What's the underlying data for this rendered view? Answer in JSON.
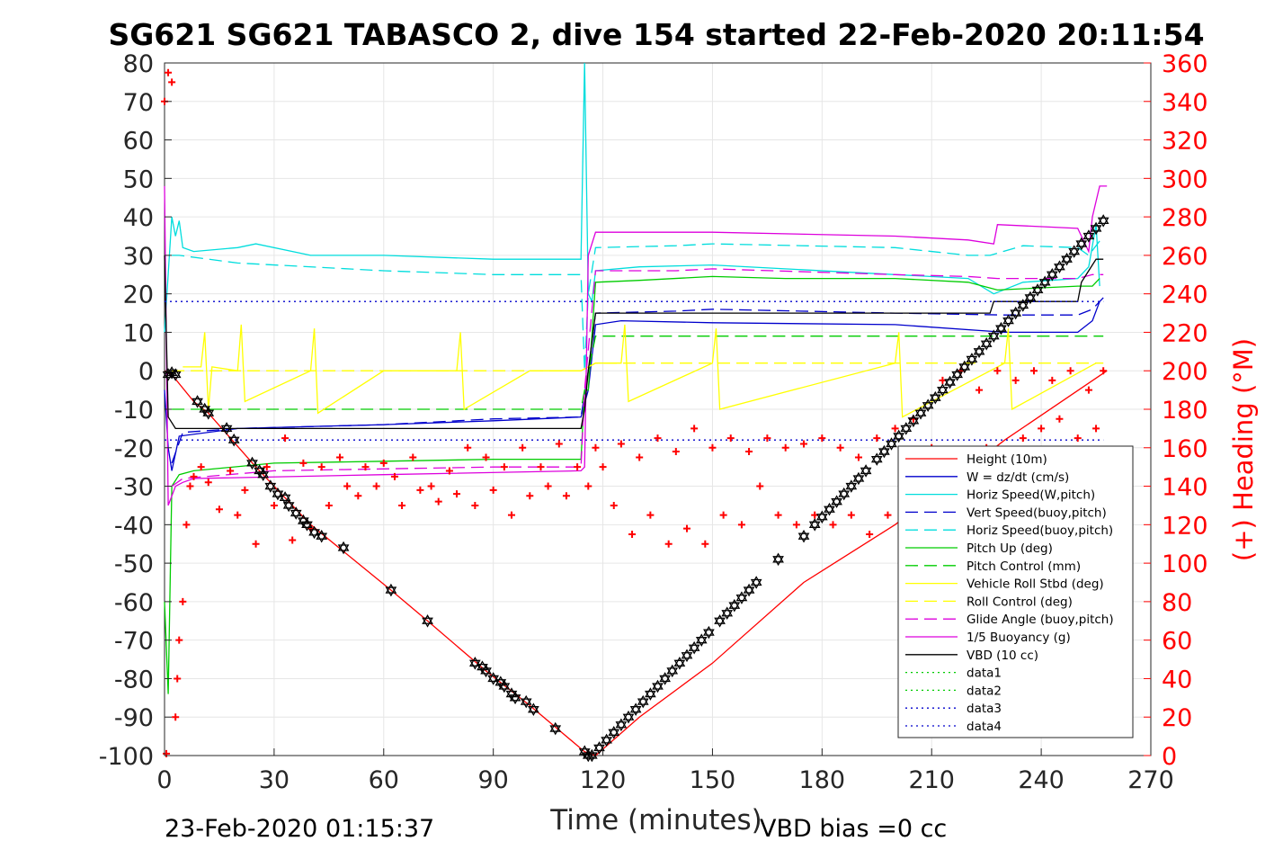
{
  "chart_data": {
    "type": "line",
    "title": "SG621 SG621 TABASCO 2, dive 154 started 22-Feb-2020 20:11:54",
    "xlabel": "Time (minutes)",
    "ylabel_right": "(+) Heading (°M)",
    "xlim": [
      0,
      270
    ],
    "ylim": [
      -100,
      80
    ],
    "ylim_right": [
      0,
      360
    ],
    "x_ticks": [
      "0",
      "30",
      "60",
      "90",
      "120",
      "150",
      "180",
      "210",
      "240",
      "270"
    ],
    "y_ticks": [
      "80",
      "70",
      "60",
      "50",
      "40",
      "30",
      "20",
      "10",
      "0",
      "-10",
      "-20",
      "-30",
      "-40",
      "-50",
      "-60",
      "-70",
      "-80",
      "-90",
      "-100"
    ],
    "y_right_ticks": [
      "360",
      "340",
      "320",
      "300",
      "280",
      "260",
      "240",
      "220",
      "200",
      "180",
      "160",
      "140",
      "120",
      "100",
      "80",
      "60",
      "40",
      "20",
      "0"
    ],
    "grid": true,
    "legend_position": "lower-right",
    "footer_left": "23-Feb-2020 01:15:37",
    "footer_right": "VBD bias =0 cc",
    "series": [
      {
        "name": "Height (10m)",
        "color": "#ff0000",
        "dash": "solid",
        "x": [
          0,
          2,
          8,
          12,
          25,
          40,
          62,
          72,
          88,
          100,
          115,
          118,
          130,
          150,
          175,
          200,
          230,
          258
        ],
        "y": [
          0,
          -1,
          -8,
          -11,
          -25,
          -40,
          -57,
          -65,
          -78,
          -87,
          -99,
          -100,
          -90,
          -76,
          -55,
          -40,
          -18,
          0
        ]
      },
      {
        "name": "W = dz/dt (cm/s)",
        "color": "#0000cc",
        "dash": "solid",
        "x": [
          0,
          1,
          2,
          4,
          20,
          60,
          90,
          114,
          116,
          118,
          125,
          150,
          200,
          230,
          250,
          254,
          256
        ],
        "y": [
          -5,
          -20,
          -26,
          -17,
          -15,
          -14,
          -13,
          -12,
          -5,
          12,
          13,
          12.5,
          12,
          10,
          10,
          13,
          18
        ]
      },
      {
        "name": "Horiz Speed(W,pitch)",
        "color": "#00dddd",
        "dash": "solid",
        "x": [
          0,
          2,
          3,
          4,
          5,
          8,
          20,
          25,
          40,
          60,
          90,
          114,
          115,
          116,
          117,
          118,
          130,
          150,
          200,
          220,
          227,
          235,
          250,
          253,
          255,
          256
        ],
        "y": [
          10,
          40,
          35,
          39,
          32,
          31,
          32,
          33,
          30,
          30,
          29,
          29,
          80,
          20,
          18,
          26,
          27,
          27.5,
          25,
          24,
          20,
          23,
          24,
          27,
          38,
          22
        ]
      },
      {
        "name": "Vert Speed(buoy,pitch)",
        "color": "#0000cc",
        "dash": "dashed",
        "x": [
          2,
          5,
          20,
          60,
          90,
          114,
          116,
          118,
          140,
          150,
          200,
          230,
          250,
          254,
          257
        ],
        "y": [
          -24,
          -16,
          -15,
          -14,
          -12.5,
          -12,
          0,
          15,
          15.5,
          16,
          15,
          14.5,
          14.5,
          16,
          19
        ]
      },
      {
        "name": "Horiz Speed(buoy,pitch)",
        "color": "#00dddd",
        "dash": "dashed",
        "x": [
          2,
          4,
          20,
          60,
          90,
          114,
          115,
          116,
          118,
          140,
          150,
          200,
          220,
          226,
          235,
          250,
          253,
          257
        ],
        "y": [
          30,
          30,
          28,
          26,
          25,
          25,
          0,
          20,
          32,
          32.5,
          33,
          32,
          30,
          30,
          32.5,
          32,
          30,
          35
        ]
      },
      {
        "name": "Pitch Up (deg)",
        "color": "#00cc00",
        "dash": "solid",
        "x": [
          0,
          1,
          2,
          4,
          8,
          30,
          60,
          90,
          114,
          115,
          116,
          118,
          130,
          150,
          170,
          200,
          220,
          228,
          250,
          254,
          256
        ],
        "y": [
          -60,
          -84,
          -30,
          -27,
          -26,
          -24,
          -23.5,
          -23,
          -23,
          -5,
          -5,
          23,
          23.5,
          24.5,
          24,
          24,
          23,
          21,
          22,
          22,
          24
        ]
      },
      {
        "name": "Pitch Control (mm)",
        "color": "#00cc00",
        "dash": "dashed",
        "x": [
          2,
          5,
          60,
          114,
          115,
          118,
          150,
          200,
          257
        ],
        "y": [
          -10,
          -10,
          -10,
          -10,
          -5,
          9,
          9,
          9,
          9
        ]
      },
      {
        "name": "Vehicle Roll Stbd (deg)",
        "color": "#ffff00",
        "dash": "solid",
        "x": [
          5,
          10,
          11,
          12,
          13,
          20,
          21,
          22,
          40,
          41,
          42,
          60,
          80,
          81,
          82,
          100,
          114,
          118,
          125,
          126,
          127,
          150,
          151,
          152,
          200,
          201,
          202,
          230,
          231,
          232,
          255
        ],
        "y": [
          1,
          1,
          10,
          -10,
          1,
          0,
          12,
          -8,
          0,
          11,
          -11,
          0,
          0,
          10,
          -10,
          0,
          0,
          2,
          2,
          12,
          -8,
          2,
          11,
          -10,
          2,
          10,
          -12,
          2,
          11,
          -10,
          2
        ]
      },
      {
        "name": "Roll Control (deg)",
        "color": "#ffff00",
        "dash": "dashed",
        "x": [
          2,
          114,
          118,
          257
        ],
        "y": [
          0,
          0,
          2,
          2
        ]
      },
      {
        "name": "Glide Angle (buoy,pitch)",
        "color": "#dd00dd",
        "dash": "dashed",
        "x": [
          2,
          5,
          30,
          60,
          90,
          114,
          115,
          118,
          140,
          150,
          200,
          220,
          228,
          250,
          254,
          257
        ],
        "y": [
          -30,
          -28,
          -26,
          -25.5,
          -25,
          -25,
          -5,
          26,
          26,
          26.5,
          25,
          24.5,
          24,
          24,
          25,
          25
        ]
      },
      {
        "name": "1/5 Buoyancy (g)",
        "color": "#dd00dd",
        "dash": "solid",
        "x": [
          0,
          1,
          3,
          5,
          8,
          60,
          114,
          115,
          116,
          118,
          150,
          200,
          220,
          227,
          228,
          250,
          253,
          254,
          256,
          258
        ],
        "y": [
          48,
          -35,
          -30,
          -29,
          -28,
          -27,
          -26,
          -25,
          30,
          36,
          36,
          35,
          34,
          33,
          38,
          37,
          31,
          40,
          48,
          48
        ]
      },
      {
        "name": "VBD (10 cc)",
        "color": "#000000",
        "dash": "solid",
        "x": [
          0,
          1,
          3,
          5,
          60,
          114,
          115,
          116,
          118,
          150,
          200,
          226,
          227,
          250,
          251,
          255,
          257
        ],
        "y": [
          30,
          -12,
          -15,
          -15,
          -15,
          -15,
          -10,
          0,
          15,
          15,
          15,
          15,
          18,
          18,
          23,
          29,
          29
        ]
      },
      {
        "name": "data1",
        "color": "#00cc00",
        "dash": "dotted",
        "x": [],
        "y": []
      },
      {
        "name": "data2",
        "color": "#00cc00",
        "dash": "dotted",
        "x": [],
        "y": []
      },
      {
        "name": "data3",
        "color": "#0000cc",
        "dash": "dotted",
        "x": [
          0,
          257
        ],
        "y": [
          18,
          18
        ]
      },
      {
        "name": "data4",
        "color": "#0000cc",
        "dash": "dotted",
        "x": [
          0,
          257
        ],
        "y": [
          -18,
          -18
        ]
      }
    ],
    "heading": {
      "color": "#ff0000",
      "axis": "right",
      "x": [
        0,
        0.5,
        1,
        2,
        3,
        3.5,
        4,
        5,
        6,
        7,
        8,
        10,
        12,
        15,
        18,
        20,
        22,
        25,
        28,
        30,
        33,
        35,
        38,
        40,
        43,
        45,
        48,
        50,
        53,
        55,
        58,
        60,
        63,
        65,
        68,
        70,
        73,
        75,
        78,
        80,
        83,
        85,
        88,
        90,
        93,
        95,
        98,
        100,
        103,
        105,
        108,
        110,
        113,
        116,
        118,
        120,
        123,
        125,
        128,
        130,
        133,
        135,
        138,
        140,
        143,
        145,
        148,
        150,
        153,
        155,
        158,
        160,
        163,
        165,
        168,
        170,
        173,
        175,
        178,
        180,
        183,
        185,
        188,
        190,
        193,
        195,
        198,
        200,
        203,
        205,
        208,
        210,
        213,
        215,
        218,
        220,
        223,
        225,
        228,
        230,
        233,
        235,
        238,
        240,
        243,
        245,
        248,
        250,
        253,
        255,
        257
      ],
      "y": [
        340,
        1,
        355,
        350,
        20,
        40,
        60,
        80,
        120,
        140,
        145,
        150,
        142,
        128,
        148,
        125,
        138,
        110,
        150,
        130,
        165,
        112,
        152,
        118,
        150,
        130,
        155,
        140,
        135,
        150,
        140,
        152,
        145,
        130,
        155,
        138,
        140,
        132,
        148,
        136,
        160,
        130,
        155,
        138,
        150,
        125,
        160,
        135,
        150,
        140,
        162,
        135,
        150,
        140,
        160,
        150,
        130,
        162,
        115,
        155,
        125,
        165,
        110,
        158,
        118,
        170,
        110,
        160,
        125,
        165,
        120,
        158,
        140,
        165,
        125,
        160,
        120,
        162,
        125,
        165,
        120,
        160,
        125,
        155,
        115,
        165,
        125,
        170,
        130,
        175,
        140,
        160,
        195,
        140,
        200,
        150,
        190,
        160,
        200,
        155,
        195,
        165,
        200,
        170,
        195,
        175,
        200,
        165,
        190,
        170,
        200
      ]
    },
    "markers": {
      "color": "#000000",
      "x": [
        1,
        2,
        3,
        9,
        11,
        12,
        17,
        19,
        24,
        26,
        27,
        29,
        31,
        33,
        34,
        36,
        38,
        39,
        41,
        43,
        49,
        62,
        72,
        85,
        87,
        88,
        90,
        92,
        93,
        95,
        96,
        99,
        101,
        107,
        115,
        116,
        117,
        119,
        121,
        123,
        125,
        127,
        129,
        131,
        133,
        135,
        137,
        139,
        141,
        143,
        145,
        147,
        149,
        152,
        154,
        156,
        158,
        160,
        162,
        168,
        175,
        178,
        180,
        182,
        184,
        186,
        188,
        190,
        192,
        195,
        197,
        199,
        201,
        203,
        205,
        207,
        209,
        211,
        213,
        215,
        217,
        219,
        221,
        223,
        225,
        227,
        229,
        231,
        233,
        235,
        237,
        239,
        241,
        243,
        245,
        247,
        249,
        251,
        253,
        255,
        257
      ],
      "y": [
        -1,
        -0.5,
        -1,
        -8,
        -10,
        -11,
        -15,
        -18,
        -24,
        -26,
        -27,
        -30,
        -32,
        -33,
        -35,
        -37,
        -39,
        -40,
        -42,
        -43,
        -46,
        -57,
        -65,
        -76,
        -77,
        -78,
        -80,
        -81,
        -82,
        -84,
        -85,
        -86,
        -88,
        -93,
        -99,
        -100,
        -100,
        -98,
        -96,
        -94,
        -92,
        -90,
        -88,
        -86,
        -84,
        -82,
        -80,
        -78,
        -76,
        -74,
        -72,
        -70,
        -68,
        -65,
        -63,
        -61,
        -59,
        -57,
        -55,
        -49,
        -43,
        -40,
        -38,
        -36,
        -34,
        -32,
        -30,
        -28,
        -26,
        -23,
        -21,
        -19,
        -17,
        -15,
        -13,
        -11,
        -9,
        -7,
        -5,
        -3,
        -1,
        1,
        3,
        5,
        7,
        9,
        11,
        13,
        15,
        17,
        19,
        21,
        23,
        25,
        27,
        29,
        31,
        33,
        35,
        37,
        39
      ]
    }
  }
}
